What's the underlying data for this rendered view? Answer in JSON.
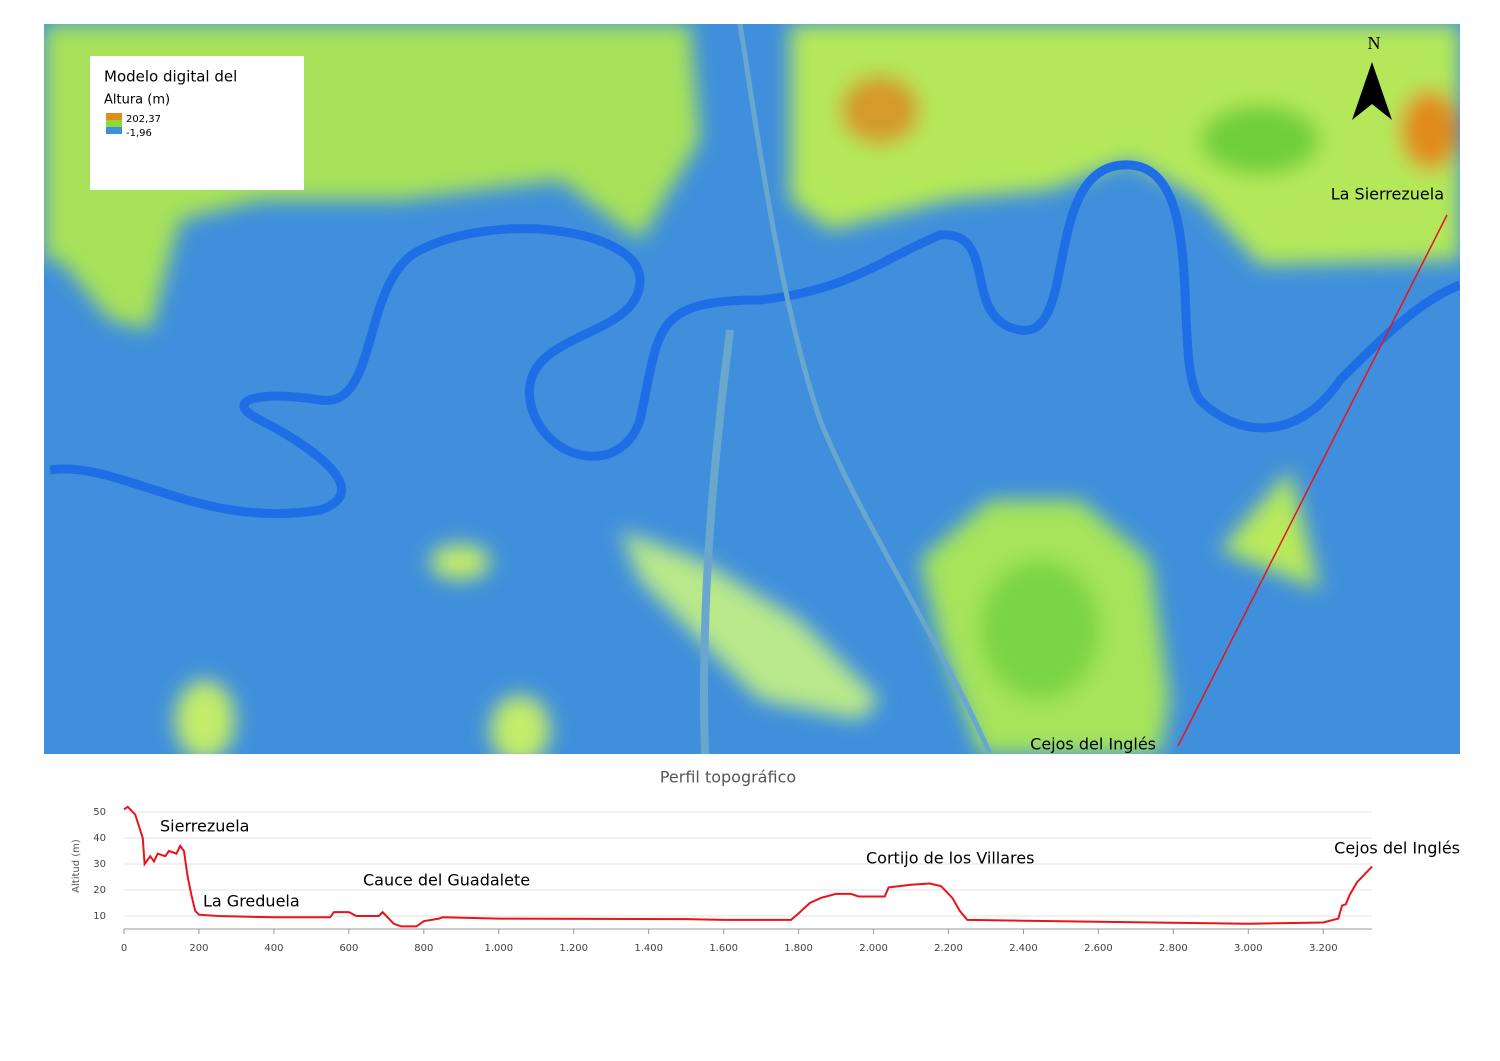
{
  "map": {
    "legend": {
      "title": "Modelo digital del",
      "subtitle": "Altura (m)",
      "max": "202,37",
      "min": "-1,96"
    },
    "north": "N",
    "labels": [
      "La Sierrezuela",
      "Cejos del Inglés"
    ]
  },
  "chart_data": {
    "type": "line",
    "title": "Perfil topográfico",
    "y_label": "Altitud (m)",
    "x": [
      0,
      10,
      30,
      50,
      55,
      70,
      80,
      90,
      110,
      120,
      140,
      150,
      160,
      170,
      180,
      190,
      200,
      250,
      400,
      550,
      560,
      600,
      620,
      680,
      690,
      700,
      720,
      740,
      780,
      800,
      840,
      850,
      1000,
      1500,
      1600,
      1780,
      1800,
      1830,
      1860,
      1900,
      1940,
      1960,
      2030,
      2040,
      2100,
      2150,
      2180,
      2210,
      2230,
      2250,
      2500,
      3000,
      3200,
      3240,
      3250,
      3260,
      3270,
      3290,
      3310,
      3330
    ],
    "series": [
      {
        "name": "Altitud",
        "color": "#e8141b",
        "values": [
          51,
          52,
          49,
          40,
          30,
          33,
          31,
          34,
          33,
          35,
          34,
          37,
          35,
          25,
          18,
          12,
          10.5,
          10,
          9.5,
          9.5,
          11.5,
          11.5,
          10,
          10,
          11.5,
          10,
          7,
          6,
          6,
          8,
          9,
          9.5,
          9,
          8.8,
          8.5,
          8.5,
          11,
          15,
          17,
          18.5,
          18.5,
          17.5,
          17.5,
          21,
          22,
          22.5,
          21.5,
          17,
          12,
          8.5,
          8,
          7,
          7.5,
          9,
          14,
          14.5,
          18,
          23,
          26,
          29
        ]
      }
    ],
    "xlim": [
      0,
      3330
    ],
    "ylim": [
      5,
      55
    ],
    "xticks": [
      0,
      200,
      400,
      600,
      800,
      {
        "value": 1000,
        "label": "1.000"
      },
      {
        "value": 1200,
        "label": "1.200"
      },
      {
        "value": 1400,
        "label": "1.400"
      },
      {
        "value": 1600,
        "label": "1.600"
      },
      {
        "value": 1800,
        "label": "1.800"
      },
      {
        "value": 2000,
        "label": "2.000"
      },
      {
        "value": 2200,
        "label": "2.200"
      },
      {
        "value": 2400,
        "label": "2.400"
      },
      {
        "value": 2600,
        "label": "2.600"
      },
      {
        "value": 2800,
        "label": "2.800"
      },
      {
        "value": 3000,
        "label": "3.000"
      },
      {
        "value": 3200,
        "label": "3.200"
      }
    ],
    "yticks": [
      10,
      20,
      30,
      40,
      50
    ],
    "grid": true,
    "annotations": [
      "Sierrezuela",
      "La Greduela",
      "Cauce del Guadalete",
      "Cortijo de los Villares",
      "Cejos del Inglés"
    ]
  }
}
